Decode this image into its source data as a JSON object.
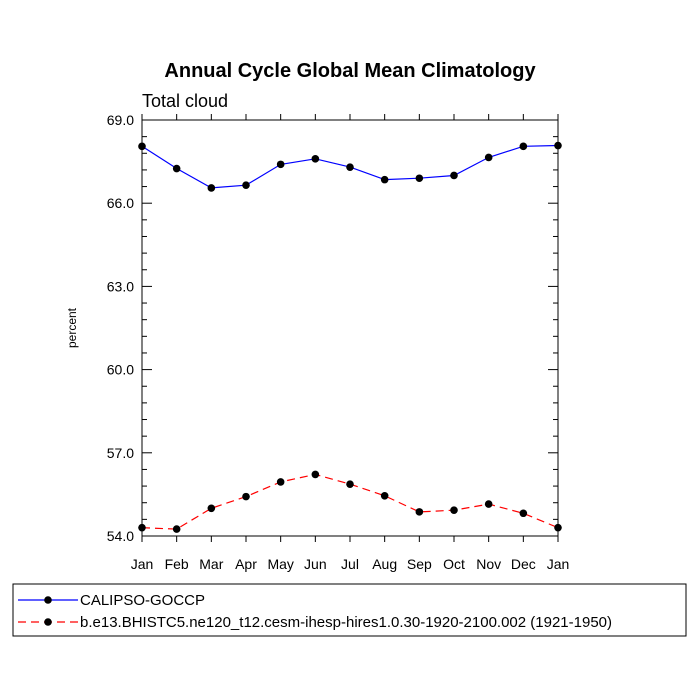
{
  "chart_data": {
    "type": "line",
    "title": "Annual Cycle Global Mean Climatology",
    "subtitle": "Total cloud",
    "xlabel": "",
    "ylabel": "percent",
    "categories": [
      "Jan",
      "Feb",
      "Mar",
      "Apr",
      "May",
      "Jun",
      "Jul",
      "Aug",
      "Sep",
      "Oct",
      "Nov",
      "Dec",
      "Jan"
    ],
    "ylim": [
      54.0,
      69.0
    ],
    "yticks": [
      "54.0",
      "57.0",
      "60.0",
      "63.0",
      "66.0",
      "69.0"
    ],
    "grid": false,
    "legend_position": "bottom",
    "series": [
      {
        "name": "CALIPSO-GOCCP",
        "color": "#0000ff",
        "line_style": "solid",
        "marker": "filled-circle",
        "values": [
          68.05,
          67.25,
          66.55,
          66.65,
          67.4,
          67.6,
          67.3,
          66.85,
          66.9,
          67.0,
          67.65,
          68.05,
          68.08
        ]
      },
      {
        "name": "b.e13.BHISTC5.ne120_t12.cesm-ihesp-hires1.0.30-1920-2100.002 (1921-1950)",
        "color": "#ff0000",
        "line_style": "dashed",
        "marker": "filled-circle",
        "values": [
          54.3,
          54.25,
          55.0,
          55.42,
          55.95,
          56.22,
          55.87,
          55.45,
          54.87,
          54.93,
          55.15,
          54.82,
          54.3
        ]
      }
    ]
  }
}
